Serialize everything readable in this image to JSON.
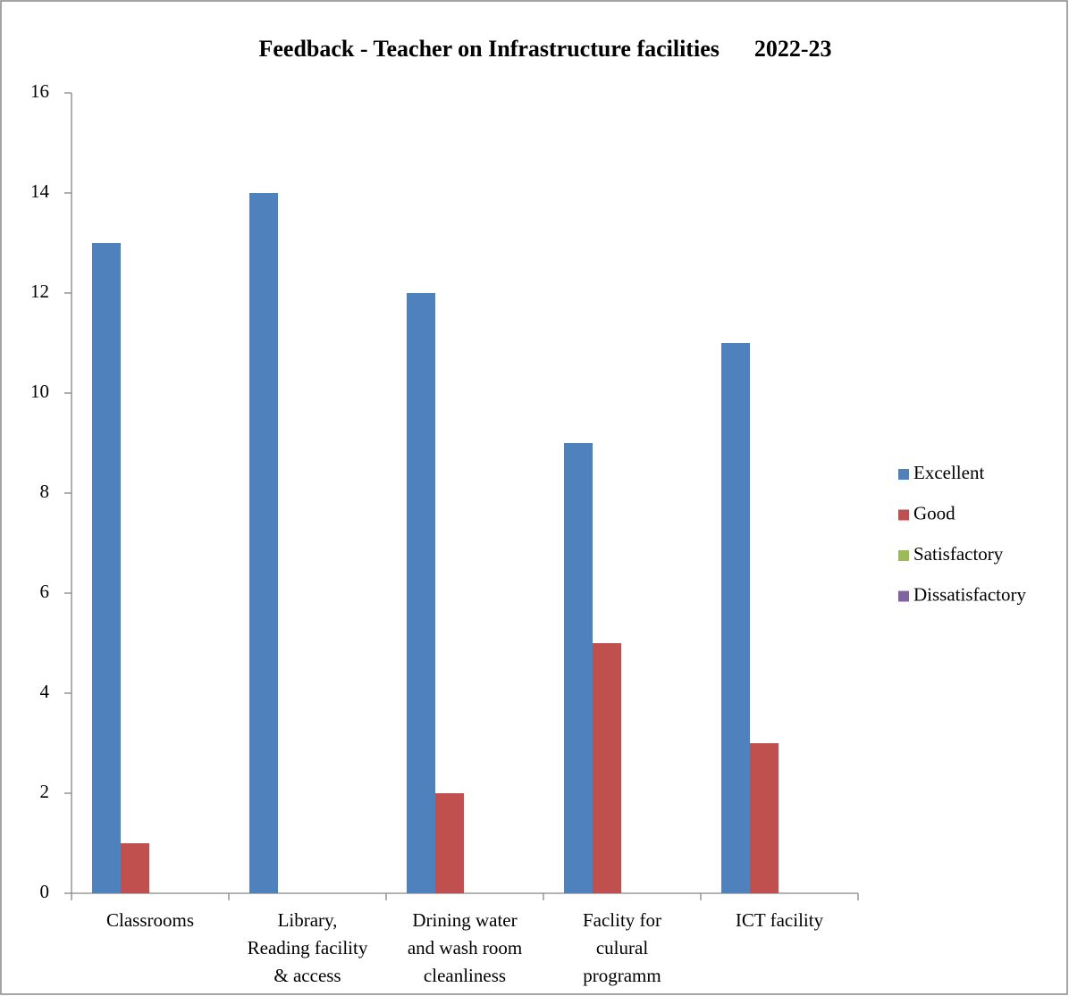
{
  "chart_data": {
    "type": "bar",
    "title": "Feedback - Teacher on Infrastructure facilities      2022-23",
    "categories": [
      [
        "Classrooms"
      ],
      [
        "Library,",
        "Reading facility",
        "& access"
      ],
      [
        "Drining water",
        "and wash room",
        "cleanliness"
      ],
      [
        "Faclity for",
        "culural",
        "programm"
      ],
      [
        "ICT facility"
      ]
    ],
    "series": [
      {
        "name": "Excellent",
        "color": "#4f81bd",
        "values": [
          13,
          14,
          12,
          9,
          11
        ]
      },
      {
        "name": "Good",
        "color": "#c0504d",
        "values": [
          1,
          0,
          2,
          5,
          3
        ]
      },
      {
        "name": "Satisfactory",
        "color": "#9bbb59",
        "values": [
          0,
          0,
          0,
          0,
          0
        ]
      },
      {
        "name": "Dissatisfactory",
        "color": "#8064a2",
        "values": [
          0,
          0,
          0,
          0,
          0
        ]
      }
    ],
    "ylim": [
      0,
      16
    ],
    "yticks": [
      0,
      2,
      4,
      6,
      8,
      10,
      12,
      14,
      16
    ],
    "grid": false,
    "legend": "right"
  }
}
